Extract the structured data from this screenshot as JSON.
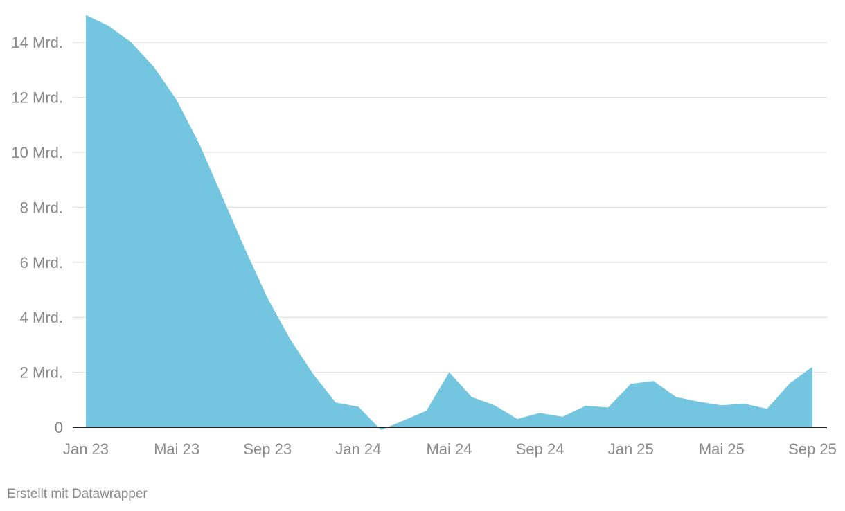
{
  "chart_data": {
    "type": "area",
    "x": [
      "Jan 23",
      "Feb 23",
      "Mär 23",
      "Apr 23",
      "Mai 23",
      "Jun 23",
      "Jul 23",
      "Aug 23",
      "Sep 23",
      "Okt 23",
      "Nov 23",
      "Dez 23",
      "Jan 24",
      "Feb 24",
      "Mär 24",
      "Apr 24",
      "Mai 24",
      "Jun 24",
      "Jul 24",
      "Aug 24",
      "Sep 24",
      "Okt 24",
      "Nov 24",
      "Dez 24",
      "Jan 25",
      "Feb 25",
      "Mär 25",
      "Apr 25",
      "Mai 25",
      "Jun 25",
      "Jul 25",
      "Aug 25",
      "Sep 25"
    ],
    "series": [
      {
        "color": "#74c5df",
        "values": [
          15.0,
          14.6,
          14.0,
          13.1,
          11.9,
          10.3,
          8.4,
          6.5,
          4.7,
          3.2,
          1.95,
          0.9,
          0.75,
          -0.1,
          0.25,
          0.6,
          2.0,
          1.1,
          0.8,
          0.3,
          0.52,
          0.38,
          0.78,
          0.72,
          1.58,
          1.68,
          1.1,
          0.93,
          0.8,
          0.86,
          0.67,
          1.6,
          2.2
        ]
      }
    ],
    "x_tick_labels": [
      "Jan 23",
      "Mai 23",
      "Sep 23",
      "Jan 24",
      "Mai 24",
      "Sep 24",
      "Jan 25",
      "Mai 25",
      "Sep 25"
    ],
    "y_ticks": [
      {
        "value": 0,
        "label": "0"
      },
      {
        "value": 2,
        "label": "2 Mrd."
      },
      {
        "value": 4,
        "label": "4 Mrd."
      },
      {
        "value": 6,
        "label": "6 Mrd."
      },
      {
        "value": 8,
        "label": "8 Mrd."
      },
      {
        "value": 10,
        "label": "10 Mrd."
      },
      {
        "value": 12,
        "label": "12 Mrd."
      },
      {
        "value": 14,
        "label": "14 Mrd."
      }
    ],
    "ylim": [
      0,
      15
    ],
    "grid": true,
    "title": "",
    "xlabel": "",
    "ylabel": ""
  },
  "footer": {
    "credit": "Erstellt mit Datawrapper"
  }
}
